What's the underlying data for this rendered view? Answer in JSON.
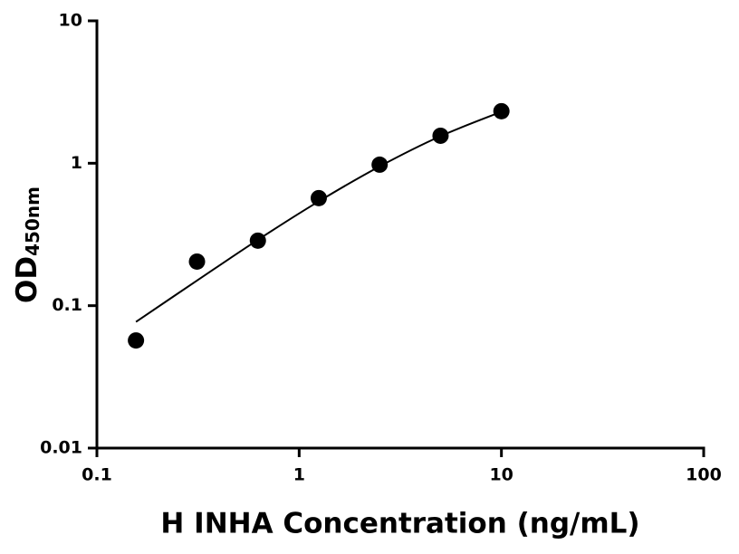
{
  "chart_data": {
    "type": "scatter",
    "xlabel": "H INHA Concentration (ng/mL)",
    "ylabel": "OD",
    "ylabel_subscript": "450nm",
    "xscale": "log",
    "yscale": "log",
    "xlim": [
      0.1,
      100
    ],
    "ylim": [
      0.01,
      10
    ],
    "xticks": [
      0.1,
      1,
      10,
      100
    ],
    "yticks": [
      0.01,
      0.1,
      1,
      10
    ],
    "series": [
      {
        "color": "#000000",
        "x": [
          0.156,
          0.3125,
          0.625,
          1.25,
          2.5,
          5,
          10
        ],
        "values": [
          0.057,
          0.204,
          0.286,
          0.569,
          0.977,
          1.56,
          2.32
        ]
      }
    ],
    "fit": {
      "color": "#000000",
      "x": [
        0.156,
        0.3125,
        0.625,
        1.25,
        2.5,
        5,
        10
      ],
      "values": [
        0.077,
        0.15,
        0.29,
        0.54,
        0.95,
        1.55,
        2.3
      ]
    }
  }
}
